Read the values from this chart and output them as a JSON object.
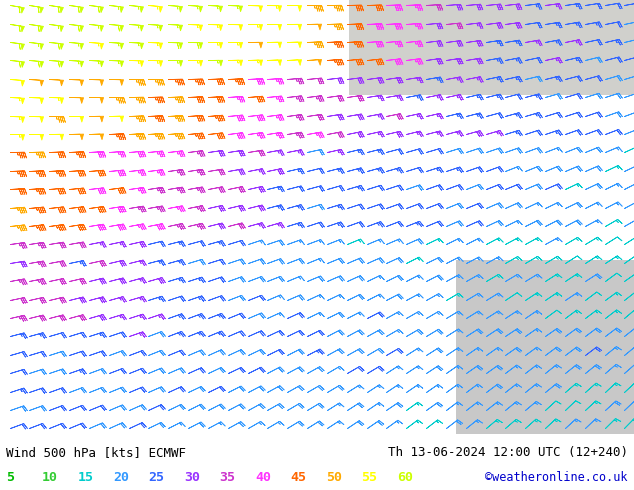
{
  "title_left": "Wind 500 hPa [kts] ECMWF",
  "title_right": "Th 13-06-2024 12:00 UTC (12+240)",
  "credit": "©weatheronline.co.uk",
  "legend_values": [
    5,
    10,
    15,
    20,
    25,
    30,
    35,
    40,
    45,
    50,
    55,
    60
  ],
  "legend_colors": [
    "#00bb00",
    "#33cc33",
    "#00cccc",
    "#3399ff",
    "#3366ff",
    "#9933ff",
    "#cc33cc",
    "#ff33ff",
    "#ff6600",
    "#ffaa00",
    "#ffff00",
    "#ccff00"
  ],
  "bg_color_land": "#b8e890",
  "bg_color_sea": "#d8d8d8",
  "bg_color_top_right": "#e8f8d0",
  "bottom_bg": "#ffffff",
  "text_color": "#000000",
  "credit_color": "#0000cc",
  "figwidth": 6.34,
  "figheight": 4.9,
  "dpi": 100,
  "barb_nx": 32,
  "barb_ny": 24
}
